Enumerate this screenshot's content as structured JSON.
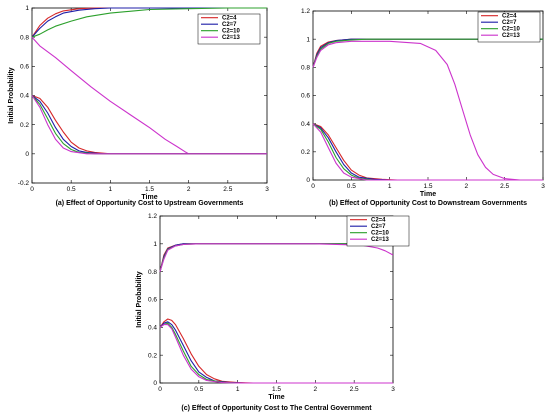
{
  "chart_data": [
    {
      "type": "line",
      "caption": "(a) Effect of Opportunity Cost to Upstream Governments",
      "xlabel": "Time",
      "ylabel": "Initial Probability",
      "xlim": [
        0,
        3
      ],
      "ylim": [
        -0.2,
        1
      ],
      "xticks": [
        "0",
        "0.5",
        "1",
        "1.5",
        "2",
        "2.5",
        "3"
      ],
      "yticks": [
        "-0.2",
        "0",
        "0.2",
        "0.4",
        "0.6",
        "0.8",
        "1"
      ],
      "grid": false,
      "legend_position": "right",
      "series": [
        {
          "name": "C2=4",
          "color": "#d62728",
          "group": "upper",
          "x": [
            0,
            0.05,
            0.1,
            0.2,
            0.3,
            0.4,
            0.6,
            0.8,
            1,
            1.5,
            2,
            3
          ],
          "y": [
            0.8,
            0.84,
            0.88,
            0.93,
            0.96,
            0.98,
            0.995,
            1,
            1,
            1,
            1,
            1
          ]
        },
        {
          "name": "C2=7",
          "color": "#1f1fa8",
          "group": "upper",
          "x": [
            0,
            0.05,
            0.1,
            0.2,
            0.3,
            0.4,
            0.6,
            0.8,
            1,
            1.5,
            2,
            3
          ],
          "y": [
            0.8,
            0.83,
            0.86,
            0.91,
            0.94,
            0.965,
            0.985,
            0.995,
            1,
            1,
            1,
            1
          ]
        },
        {
          "name": "C2=10",
          "color": "#2ca02c",
          "group": "upper",
          "x": [
            0,
            0.1,
            0.2,
            0.3,
            0.5,
            0.7,
            1,
            1.3,
            1.5,
            2,
            2.5,
            3
          ],
          "y": [
            0.8,
            0.82,
            0.85,
            0.875,
            0.91,
            0.94,
            0.965,
            0.98,
            0.99,
            0.995,
            1,
            1
          ]
        },
        {
          "name": "C2=13",
          "color": "#cc33cc",
          "group": "upper",
          "x": [
            0,
            0.1,
            0.3,
            0.5,
            0.75,
            1,
            1.25,
            1.5,
            1.7,
            1.85,
            1.95,
            2,
            2.5,
            3
          ],
          "y": [
            0.8,
            0.74,
            0.66,
            0.57,
            0.46,
            0.36,
            0.27,
            0.18,
            0.1,
            0.05,
            0.015,
            0,
            0,
            0
          ]
        },
        {
          "name": "C2=4",
          "color": "#d62728",
          "group": "lower",
          "x": [
            0,
            0.1,
            0.2,
            0.3,
            0.4,
            0.5,
            0.6,
            0.7,
            0.8,
            1,
            3
          ],
          "y": [
            0.4,
            0.38,
            0.32,
            0.23,
            0.15,
            0.08,
            0.04,
            0.02,
            0.01,
            0,
            0
          ]
        },
        {
          "name": "C2=7",
          "color": "#1f1fa8",
          "group": "lower",
          "x": [
            0,
            0.1,
            0.2,
            0.3,
            0.4,
            0.5,
            0.6,
            0.7,
            0.9,
            3
          ],
          "y": [
            0.4,
            0.36,
            0.28,
            0.18,
            0.1,
            0.05,
            0.02,
            0.01,
            0,
            0
          ]
        },
        {
          "name": "C2=10",
          "color": "#2ca02c",
          "group": "lower",
          "x": [
            0,
            0.1,
            0.2,
            0.3,
            0.4,
            0.5,
            0.6,
            0.8,
            3
          ],
          "y": [
            0.4,
            0.34,
            0.24,
            0.14,
            0.07,
            0.03,
            0.01,
            0,
            0
          ]
        },
        {
          "name": "C2=13",
          "color": "#cc33cc",
          "group": "lower",
          "x": [
            0,
            0.1,
            0.2,
            0.3,
            0.4,
            0.5,
            0.7,
            3
          ],
          "y": [
            0.4,
            0.32,
            0.2,
            0.1,
            0.04,
            0.015,
            0,
            0
          ]
        }
      ]
    },
    {
      "type": "line",
      "caption": "(b) Effect of Opportunity Cost to Downstream Governments",
      "xlabel": "Time",
      "ylabel": "",
      "xlim": [
        0,
        3
      ],
      "ylim": [
        0,
        1.2
      ],
      "xticks": [
        "0",
        "0.5",
        "1",
        "1.5",
        "2",
        "2.5",
        "3"
      ],
      "yticks": [
        "0",
        "0.2",
        "0.4",
        "0.6",
        "0.8",
        "1",
        "1.2"
      ],
      "grid": false,
      "legend_position": "top-right",
      "series": [
        {
          "name": "C2=4",
          "color": "#d62728",
          "group": "upper",
          "x": [
            0,
            0.05,
            0.1,
            0.2,
            0.3,
            0.5,
            0.7,
            1,
            3
          ],
          "y": [
            0.8,
            0.9,
            0.95,
            0.98,
            0.99,
            1,
            1,
            1,
            1
          ]
        },
        {
          "name": "C2=7",
          "color": "#1f1fa8",
          "group": "upper",
          "x": [
            0,
            0.05,
            0.1,
            0.2,
            0.3,
            0.5,
            0.7,
            1,
            3
          ],
          "y": [
            0.8,
            0.89,
            0.94,
            0.975,
            0.99,
            1,
            1,
            1,
            1
          ]
        },
        {
          "name": "C2=10",
          "color": "#2ca02c",
          "group": "upper",
          "x": [
            0,
            0.05,
            0.1,
            0.2,
            0.3,
            0.5,
            0.7,
            1,
            3
          ],
          "y": [
            0.8,
            0.88,
            0.93,
            0.97,
            0.985,
            0.995,
            1,
            1,
            1
          ]
        },
        {
          "name": "C2=13",
          "color": "#cc33cc",
          "group": "upper",
          "x": [
            0,
            0.05,
            0.1,
            0.2,
            0.3,
            0.5,
            1,
            1.4,
            1.6,
            1.75,
            1.85,
            1.95,
            2.05,
            2.15,
            2.25,
            2.35,
            2.5,
            2.7,
            3
          ],
          "y": [
            0.8,
            0.87,
            0.92,
            0.96,
            0.975,
            0.985,
            0.985,
            0.97,
            0.92,
            0.82,
            0.68,
            0.5,
            0.32,
            0.18,
            0.09,
            0.04,
            0.01,
            0,
            0
          ]
        },
        {
          "name": "C2=4",
          "color": "#d62728",
          "group": "lower",
          "x": [
            0,
            0.1,
            0.2,
            0.3,
            0.4,
            0.5,
            0.6,
            0.7,
            0.9,
            1.1,
            3
          ],
          "y": [
            0.4,
            0.38,
            0.32,
            0.23,
            0.14,
            0.07,
            0.035,
            0.015,
            0.005,
            0,
            0
          ]
        },
        {
          "name": "C2=7",
          "color": "#1f1fa8",
          "group": "lower",
          "x": [
            0,
            0.1,
            0.2,
            0.3,
            0.4,
            0.5,
            0.6,
            0.8,
            1,
            3
          ],
          "y": [
            0.4,
            0.37,
            0.3,
            0.2,
            0.11,
            0.05,
            0.02,
            0.005,
            0,
            0
          ]
        },
        {
          "name": "C2=10",
          "color": "#2ca02c",
          "group": "lower",
          "x": [
            0,
            0.1,
            0.2,
            0.3,
            0.4,
            0.5,
            0.6,
            0.8,
            3
          ],
          "y": [
            0.4,
            0.36,
            0.27,
            0.16,
            0.08,
            0.035,
            0.012,
            0,
            0
          ]
        },
        {
          "name": "C2=13",
          "color": "#cc33cc",
          "group": "lower",
          "x": [
            0,
            0.1,
            0.2,
            0.3,
            0.4,
            0.5,
            0.7,
            3
          ],
          "y": [
            0.4,
            0.34,
            0.23,
            0.12,
            0.05,
            0.02,
            0,
            0
          ]
        }
      ]
    },
    {
      "type": "line",
      "caption": "(c) Effect of Opportunity Cost to The Central Government",
      "xlabel": "Time",
      "ylabel": "Initial Probability",
      "xlim": [
        0,
        3
      ],
      "ylim": [
        0,
        1.2
      ],
      "xticks": [
        "0",
        "0.5",
        "1",
        "1.5",
        "2",
        "2.5",
        "3"
      ],
      "yticks": [
        "0",
        "0.2",
        "0.4",
        "0.6",
        "0.8",
        "1",
        "1.2"
      ],
      "grid": false,
      "legend_position": "top-right",
      "series": [
        {
          "name": "C2=4",
          "color": "#d62728",
          "group": "upper",
          "x": [
            0,
            0.05,
            0.1,
            0.2,
            0.3,
            0.5,
            1,
            2,
            2.8,
            3
          ],
          "y": [
            0.8,
            0.92,
            0.97,
            0.99,
            1,
            1,
            1,
            1,
            1,
            1
          ]
        },
        {
          "name": "C2=7",
          "color": "#1f1fa8",
          "group": "upper",
          "x": [
            0,
            0.05,
            0.1,
            0.2,
            0.3,
            0.5,
            1,
            2,
            2.8,
            3
          ],
          "y": [
            0.8,
            0.91,
            0.965,
            0.99,
            1,
            1,
            1,
            1,
            1,
            1
          ]
        },
        {
          "name": "C2=10",
          "color": "#2ca02c",
          "group": "upper",
          "x": [
            0,
            0.05,
            0.1,
            0.2,
            0.3,
            0.5,
            1,
            2,
            2.8,
            3
          ],
          "y": [
            0.8,
            0.9,
            0.96,
            0.985,
            0.995,
            1,
            1,
            1,
            1,
            0.995
          ]
        },
        {
          "name": "C2=13",
          "color": "#cc33cc",
          "group": "upper",
          "x": [
            0,
            0.05,
            0.1,
            0.2,
            0.3,
            0.5,
            1,
            2,
            2.6,
            2.8,
            2.9,
            3
          ],
          "y": [
            0.8,
            0.89,
            0.955,
            0.985,
            0.995,
            1,
            1,
            1,
            0.99,
            0.97,
            0.95,
            0.92
          ]
        },
        {
          "name": "C2=4",
          "color": "#d62728",
          "group": "lower",
          "x": [
            0,
            0.05,
            0.1,
            0.15,
            0.2,
            0.3,
            0.4,
            0.5,
            0.6,
            0.7,
            0.8,
            1,
            1.2,
            3
          ],
          "y": [
            0.4,
            0.44,
            0.46,
            0.45,
            0.42,
            0.32,
            0.21,
            0.12,
            0.06,
            0.03,
            0.012,
            0.003,
            0,
            0
          ]
        },
        {
          "name": "C2=7",
          "color": "#1f1fa8",
          "group": "lower",
          "x": [
            0,
            0.05,
            0.1,
            0.15,
            0.2,
            0.3,
            0.4,
            0.5,
            0.6,
            0.7,
            0.9,
            1.1,
            3
          ],
          "y": [
            0.4,
            0.43,
            0.44,
            0.42,
            0.38,
            0.27,
            0.16,
            0.08,
            0.04,
            0.015,
            0.003,
            0,
            0
          ]
        },
        {
          "name": "C2=10",
          "color": "#2ca02c",
          "group": "lower",
          "x": [
            0,
            0.05,
            0.1,
            0.15,
            0.2,
            0.3,
            0.4,
            0.5,
            0.6,
            0.8,
            1,
            3
          ],
          "y": [
            0.4,
            0.42,
            0.43,
            0.4,
            0.35,
            0.23,
            0.12,
            0.06,
            0.025,
            0.005,
            0,
            0
          ]
        },
        {
          "name": "C2=13",
          "color": "#cc33cc",
          "group": "lower",
          "x": [
            0,
            0.05,
            0.1,
            0.15,
            0.2,
            0.3,
            0.4,
            0.5,
            0.6,
            0.8,
            1,
            3
          ],
          "y": [
            0.4,
            0.42,
            0.42,
            0.39,
            0.33,
            0.2,
            0.1,
            0.045,
            0.018,
            0.003,
            0,
            0
          ]
        }
      ]
    }
  ]
}
